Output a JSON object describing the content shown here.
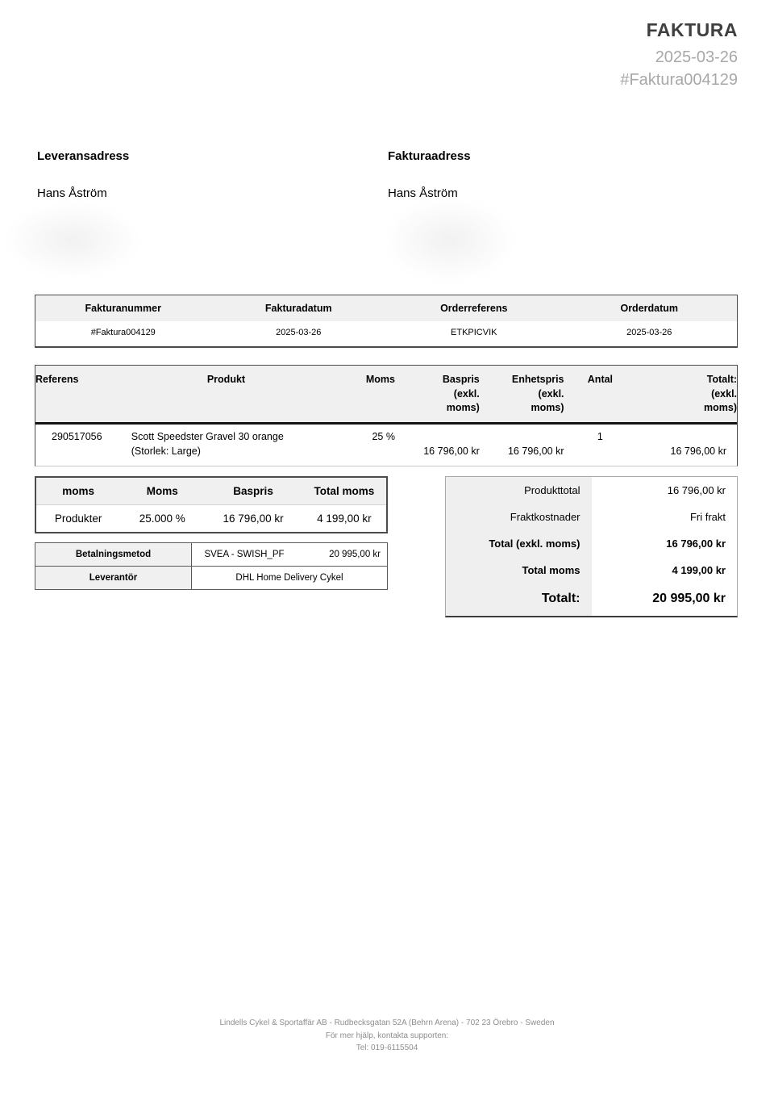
{
  "header": {
    "title": "FAKTURA",
    "date": "2025-03-26",
    "invoice_number": "#Faktura004129"
  },
  "addresses": {
    "delivery": {
      "heading": "Leveransadress",
      "name": "Hans Åström"
    },
    "billing": {
      "heading": "Fakturaadress",
      "name": "Hans Åström"
    }
  },
  "meta_table": {
    "headers": [
      "Fakturanummer",
      "Fakturadatum",
      "Orderreferens",
      "Orderdatum"
    ],
    "values": [
      "#Faktura004129",
      "2025-03-26",
      "ETKPICVIK",
      "2025-03-26"
    ]
  },
  "items_table": {
    "headers": [
      "Referens",
      "Produkt",
      "Moms",
      "Baspris\n(exkl.\nmoms)",
      "Enhetspris\n(exkl.\nmoms)",
      "Antal",
      "Totalt:\n(exkl.\nmoms)"
    ],
    "row": {
      "referens": "290517056",
      "product_name": "Scott Speedster Gravel 30 orange",
      "product_variant": "(Storlek: Large)",
      "moms": "25 %",
      "baspris": "16 796,00 kr",
      "enhetspris": "16 796,00 kr",
      "antal": "1",
      "total": "16 796,00 kr"
    }
  },
  "moms_table": {
    "headers": [
      "moms",
      "Moms",
      "Baspris",
      "Total moms"
    ],
    "row": [
      "Produkter",
      "25.000 %",
      "16 796,00 kr",
      "4 199,00 kr"
    ]
  },
  "payment_table": {
    "method_label": "Betalningsmetod",
    "method_value": "SVEA - SWISH_PF",
    "method_amount": "20 995,00 kr",
    "supplier_label": "Leverantör",
    "supplier_value": "DHL Home Delivery Cykel"
  },
  "totals": {
    "rows": [
      {
        "label": "Produkttotal",
        "value": "16 796,00 kr"
      },
      {
        "label": "Fraktkostnader",
        "value": "Fri frakt"
      },
      {
        "label": "Total (exkl. moms)",
        "value": "16 796,00 kr"
      },
      {
        "label": "Total moms",
        "value": "4 199,00 kr"
      },
      {
        "label": "Totalt:",
        "value": "20 995,00 kr"
      }
    ]
  },
  "footer": {
    "line1": "Lindells Cykel & Sportaffär AB - Rudbecksgatan 52A (Behrn Arena) - 702 23 Örebro - Sweden",
    "line2": "För mer hjälp, kontakta supporten:",
    "line3": "Tel: 019-6115504"
  },
  "colors": {
    "table_header_bg": "#f0f0f0",
    "muted_text": "#a8a8a8",
    "title_text": "#3f3f3f",
    "border_dark": "#4a4a4a"
  }
}
